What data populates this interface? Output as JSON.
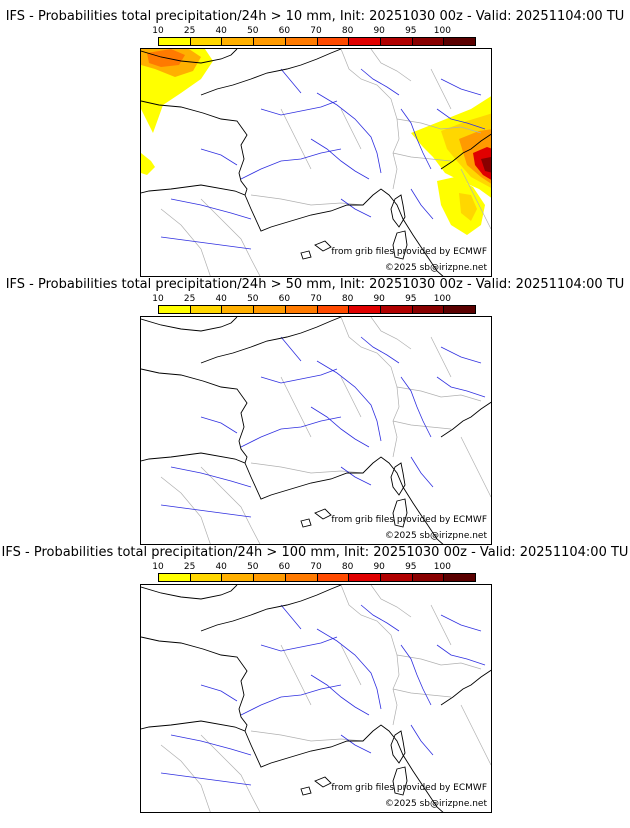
{
  "panels": [
    {
      "title": "IFS - Probabilities total precipitation/24h > 10 mm, Init: 20251030 00z - Valid: 20251104:00 TU",
      "threshold_mm": 10,
      "source": "from grib files provided by ECMWF",
      "copyright": "©2025 sb@irizpne.net",
      "precip_areas": [
        "channel-west",
        "bay-west",
        "alps-east",
        "adriatic-north"
      ]
    },
    {
      "title": "IFS - Probabilities total precipitation/24h > 50 mm, Init: 20251030 00z - Valid: 20251104:00 TU",
      "threshold_mm": 50,
      "source": "from grib files provided by ECMWF",
      "copyright": "©2025 sb@irizpne.net",
      "precip_areas": []
    },
    {
      "title": "IFS - Probabilities total precipitation/24h > 100 mm, Init: 20251030 00z - Valid: 20251104:00 TU",
      "threshold_mm": 100,
      "source": "from grib files provided by ECMWF",
      "copyright": "©2025 sb@irizpne.net",
      "precip_areas": []
    }
  ],
  "scale": {
    "labels": [
      "10",
      "25",
      "40",
      "50",
      "60",
      "70",
      "80",
      "90",
      "95",
      "100"
    ],
    "colors": [
      "#ffff00",
      "#ffd700",
      "#ffb000",
      "#ff9a00",
      "#ff7a00",
      "#ff4a00",
      "#e00000",
      "#b00000",
      "#880000",
      "#5a0000"
    ]
  }
}
